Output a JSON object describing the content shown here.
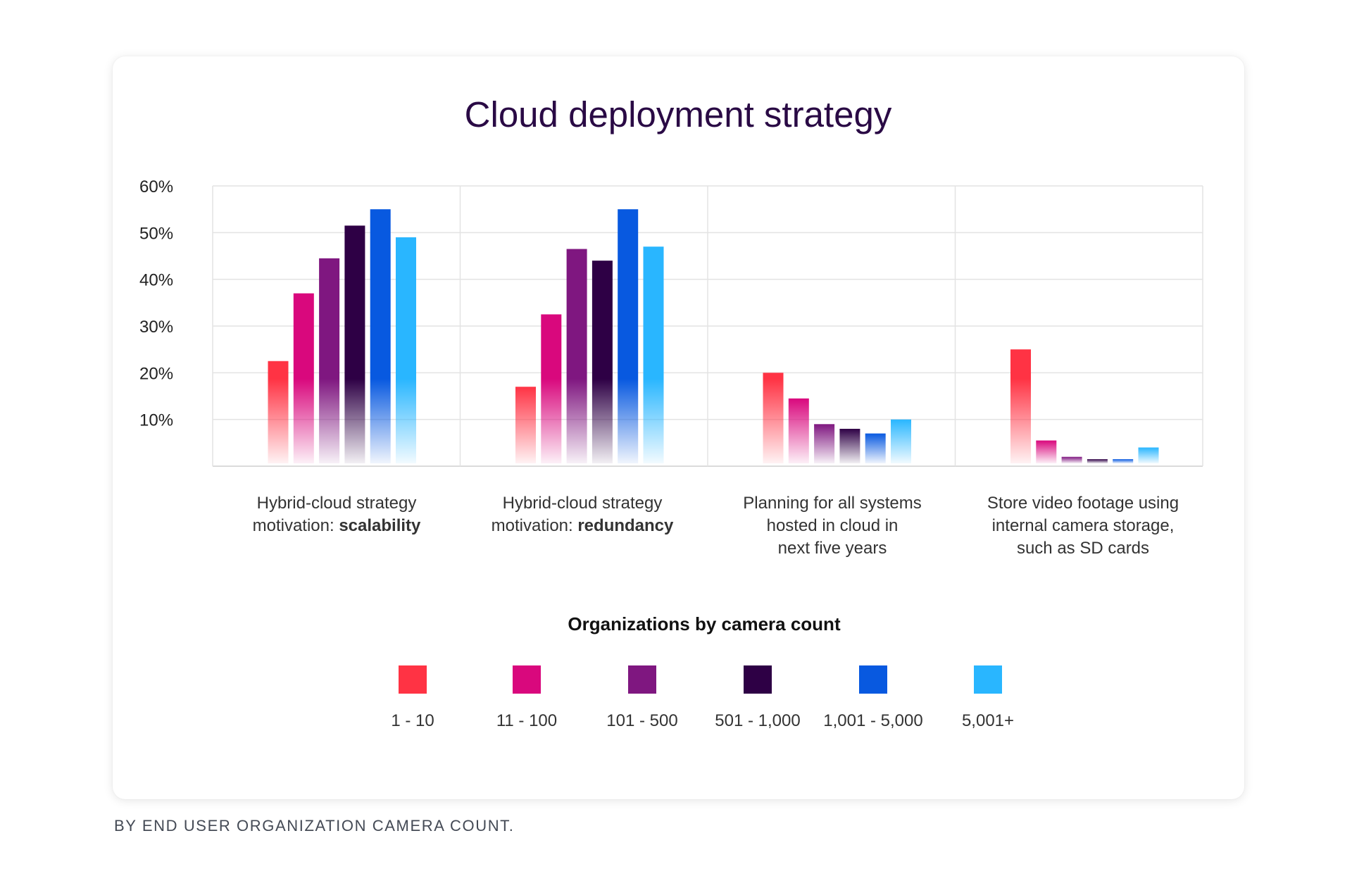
{
  "footnote": "BY END USER ORGANIZATION CAMERA COUNT.",
  "chart_data": {
    "type": "bar",
    "title": "Cloud deployment strategy",
    "xlabel": "",
    "ylabel": "",
    "ylim": [
      0,
      60
    ],
    "yticks": [
      10,
      20,
      30,
      40,
      50,
      60
    ],
    "ytick_labels": [
      "10%",
      "20%",
      "30%",
      "40%",
      "50%",
      "60%"
    ],
    "grid": true,
    "categories": [
      {
        "lines": [
          [
            "Hybrid-cloud strategy"
          ],
          [
            "motivation: ",
            "scalability"
          ]
        ]
      },
      {
        "lines": [
          [
            "Hybrid-cloud strategy"
          ],
          [
            "motivation: ",
            "redundancy"
          ]
        ]
      },
      {
        "lines": [
          [
            "Planning for all systems"
          ],
          [
            "hosted in cloud in"
          ],
          [
            "next five years"
          ]
        ]
      },
      {
        "lines": [
          [
            "Store video footage using"
          ],
          [
            "internal camera storage,"
          ],
          [
            "such as SD cards"
          ]
        ]
      }
    ],
    "legend_title": "Organizations by camera count",
    "legend_position": "bottom",
    "series": [
      {
        "name": "1 - 10",
        "color": "#ff3344",
        "values": [
          22.5,
          17,
          20,
          25
        ]
      },
      {
        "name": "11 - 100",
        "color": "#d9087d",
        "values": [
          37,
          32.5,
          14.5,
          5.5
        ]
      },
      {
        "name": "101 - 500",
        "color": "#7f1780",
        "values": [
          44.5,
          46.5,
          9,
          2
        ]
      },
      {
        "name": "501 - 1,000",
        "color": "#2e0045",
        "values": [
          51.5,
          44,
          8,
          1.5
        ]
      },
      {
        "name": "1,001 - 5,000",
        "color": "#0859e0",
        "values": [
          55,
          55,
          7,
          1.5
        ]
      },
      {
        "name": "5,001+",
        "color": "#29b6ff",
        "values": [
          49,
          47,
          10,
          4
        ]
      }
    ]
  }
}
